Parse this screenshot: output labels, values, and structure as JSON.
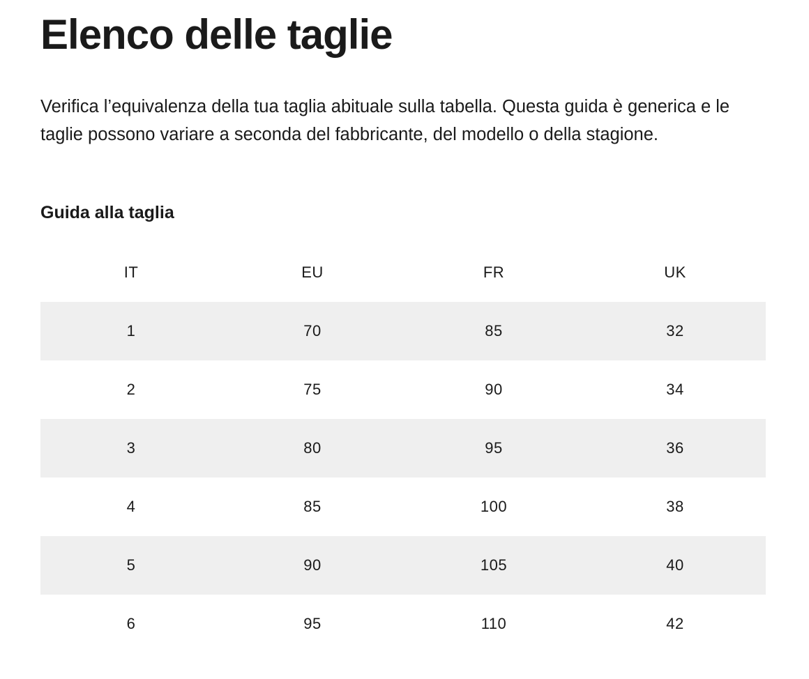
{
  "header": {
    "title": "Elenco delle taglie",
    "intro": "Verifica l’equivalenza della tua taglia abituale sulla tabella. Questa guida è generica e le taglie possono variare a seconda del fabbricante, del modello o della stagione."
  },
  "table": {
    "title": "Guida alla taglia",
    "columns": [
      "IT",
      "EU",
      "FR",
      "UK"
    ],
    "rows": [
      [
        1,
        70,
        85,
        32
      ],
      [
        2,
        75,
        90,
        34
      ],
      [
        3,
        80,
        95,
        36
      ],
      [
        4,
        85,
        100,
        38
      ],
      [
        5,
        90,
        105,
        40
      ],
      [
        6,
        95,
        110,
        42
      ]
    ]
  }
}
